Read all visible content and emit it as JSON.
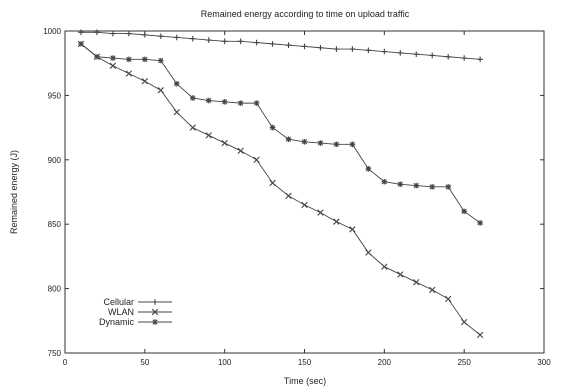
{
  "chart_data": {
    "type": "line",
    "title": "Remained energy according to time on upload traffic",
    "xlabel": "Time (sec)",
    "ylabel": "Remained energy (J)",
    "xlim": [
      0,
      300
    ],
    "ylim": [
      750,
      1000
    ],
    "xticks": [
      0,
      50,
      100,
      150,
      200,
      250,
      300
    ],
    "yticks": [
      750,
      800,
      850,
      900,
      950,
      1000
    ],
    "grid": false,
    "legend_position": "bottom-left",
    "series": [
      {
        "name": "Cellular",
        "marker": "plus",
        "x": [
          10,
          20,
          30,
          40,
          50,
          60,
          70,
          80,
          90,
          100,
          110,
          120,
          130,
          140,
          150,
          160,
          170,
          180,
          190,
          200,
          210,
          220,
          230,
          240,
          250,
          260
        ],
        "y": [
          999,
          999,
          998,
          998,
          997,
          996,
          995,
          994,
          993,
          992,
          992,
          991,
          990,
          989,
          988,
          987,
          986,
          986,
          985,
          984,
          983,
          982,
          981,
          980,
          979,
          978
        ]
      },
      {
        "name": "WLAN",
        "marker": "x",
        "x": [
          10,
          20,
          30,
          40,
          50,
          60,
          70,
          80,
          90,
          100,
          110,
          120,
          130,
          140,
          150,
          160,
          170,
          180,
          190,
          200,
          210,
          220,
          230,
          240,
          250,
          260
        ],
        "y": [
          990,
          980,
          973,
          967,
          961,
          954,
          937,
          925,
          919,
          913,
          907,
          900,
          882,
          872,
          865,
          859,
          852,
          846,
          828,
          817,
          811,
          805,
          799,
          792,
          774,
          764
        ]
      },
      {
        "name": "Dynamic",
        "marker": "star",
        "x": [
          10,
          20,
          30,
          40,
          50,
          60,
          70,
          80,
          90,
          100,
          110,
          120,
          130,
          140,
          150,
          160,
          170,
          180,
          190,
          200,
          210,
          220,
          230,
          240,
          250,
          260
        ],
        "y": [
          990,
          980,
          979,
          978,
          978,
          977,
          959,
          948,
          946,
          945,
          944,
          944,
          925,
          916,
          914,
          913,
          912,
          912,
          893,
          883,
          881,
          880,
          879,
          879,
          860,
          851
        ]
      }
    ]
  }
}
